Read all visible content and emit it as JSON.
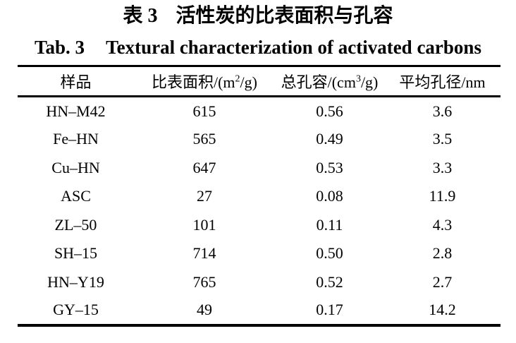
{
  "colors": {
    "text": "#000000",
    "background": "#ffffff",
    "rule": "#000000"
  },
  "title_zh": {
    "label": "表 3",
    "text": "活性炭的比表面积与孔容"
  },
  "title_en": {
    "label": "Tab. 3",
    "text": "Textural characterization of activated carbons"
  },
  "table": {
    "headers": [
      {
        "text": "样品"
      },
      {
        "pre": "比表面积/(m",
        "sup": "2",
        "post": "/g)"
      },
      {
        "pre": "总孔容/(cm",
        "sup": "3",
        "post": "/g)"
      },
      {
        "text": "平均孔径/nm"
      }
    ],
    "rows": [
      [
        "HN–M42",
        "615",
        "0.56",
        "3.6"
      ],
      [
        "Fe–HN",
        "565",
        "0.49",
        "3.5"
      ],
      [
        "Cu–HN",
        "647",
        "0.53",
        "3.3"
      ],
      [
        "ASC",
        "27",
        "0.08",
        "11.9"
      ],
      [
        "ZL–50",
        "101",
        "0.11",
        "4.3"
      ],
      [
        "SH–15",
        "714",
        "0.50",
        "2.8"
      ],
      [
        "HN–Y19",
        "765",
        "0.52",
        "2.7"
      ],
      [
        "GY–15",
        "49",
        "0.17",
        "14.2"
      ]
    ]
  }
}
